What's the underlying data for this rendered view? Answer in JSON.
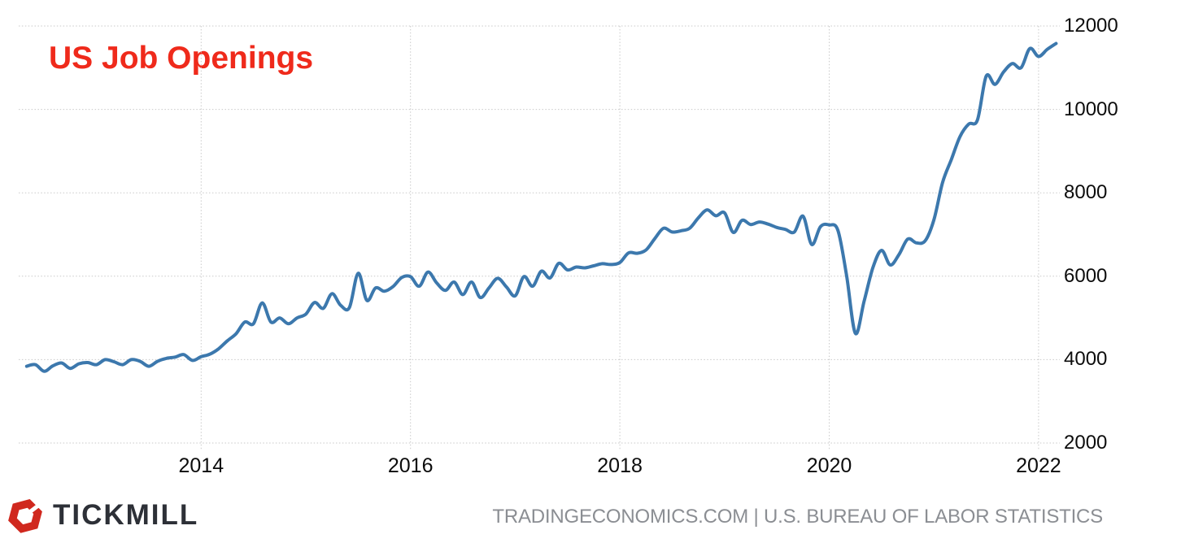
{
  "chart": {
    "title": "US Job Openings",
    "colors": {
      "title": "#ef2a1b",
      "line": "#3c78ad",
      "grid": "#c9c9c9",
      "tick_label": "#0c0c0c",
      "background": "#ffffff"
    }
  },
  "chart_data": {
    "type": "line",
    "title": "US Job Openings",
    "xlabel": "",
    "ylabel": "",
    "grid": true,
    "legend_visible": false,
    "y_axis_side": "right",
    "ylim": [
      2000,
      12000
    ],
    "y_ticks": [
      2000,
      4000,
      6000,
      8000,
      10000,
      12000
    ],
    "x_tick_years": [
      2014,
      2016,
      2018,
      2020,
      2022
    ],
    "x_start_month": "2012-05",
    "x_end_month": "2022-03",
    "frequency": "monthly",
    "series": [
      {
        "name": "US Job Openings",
        "values": [
          3840,
          3880,
          3720,
          3850,
          3920,
          3790,
          3900,
          3930,
          3880,
          4000,
          3950,
          3880,
          4000,
          3960,
          3840,
          3960,
          4030,
          4060,
          4120,
          3980,
          4070,
          4130,
          4260,
          4450,
          4620,
          4900,
          4860,
          5360,
          4900,
          5000,
          4860,
          5000,
          5090,
          5370,
          5230,
          5580,
          5300,
          5250,
          6070,
          5420,
          5720,
          5640,
          5750,
          5970,
          5990,
          5760,
          6100,
          5840,
          5660,
          5860,
          5560,
          5860,
          5490,
          5720,
          5950,
          5740,
          5530,
          5990,
          5760,
          6120,
          5960,
          6310,
          6150,
          6220,
          6200,
          6250,
          6300,
          6280,
          6330,
          6560,
          6550,
          6630,
          6900,
          7150,
          7060,
          7090,
          7150,
          7400,
          7590,
          7450,
          7520,
          7050,
          7340,
          7240,
          7300,
          7250,
          7170,
          7120,
          7060,
          7440,
          6760,
          7190,
          7230,
          7100,
          6000,
          4630,
          5400,
          6200,
          6620,
          6270,
          6520,
          6890,
          6800,
          6850,
          7350,
          8250,
          8800,
          9350,
          9650,
          9750,
          10800,
          10600,
          10900,
          11100,
          11000,
          11460,
          11270,
          11440,
          11580
        ]
      }
    ]
  },
  "footer": {
    "brand": "TICKMILL",
    "brand_color": "#2d3037",
    "logo_color": "#d0281e",
    "attribution": "TRADINGECONOMICS.COM | U.S. BUREAU OF LABOR STATISTICS",
    "attribution_color": "#8b8e93"
  }
}
